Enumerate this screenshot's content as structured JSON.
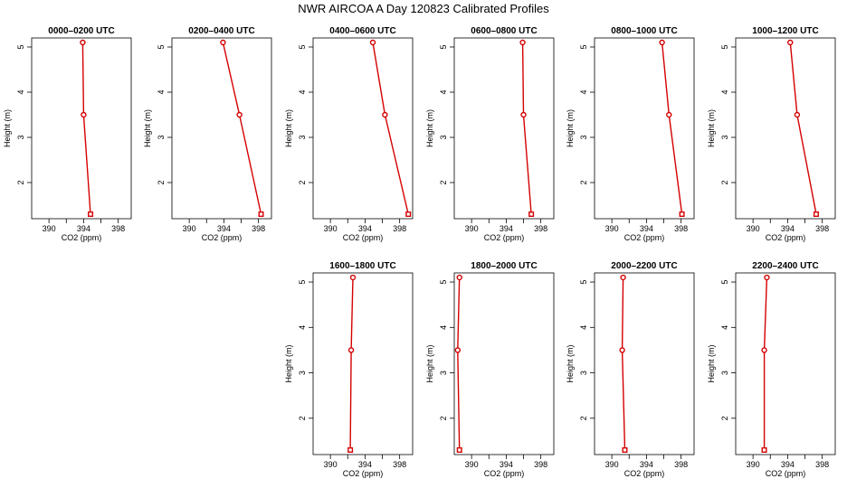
{
  "title": "NWR AIRCOA A  Day 120823  Calibrated Profiles",
  "colors": {
    "line": "#d40000",
    "frame": "#000000"
  },
  "chart_data": {
    "type": "line",
    "orientation": "profile",
    "xlabel": "CO2 (ppm)",
    "ylabel": "Height (m)",
    "xlim": [
      388,
      399.5
    ],
    "ylim": [
      1.2,
      5.2
    ],
    "xticks": [
      390,
      394,
      398
    ],
    "yticks": [
      2,
      3,
      4,
      5
    ],
    "grid": false,
    "panels": [
      {
        "title": "0000–0200 UTC",
        "row": 0,
        "col": 0,
        "heights": [
          5.1,
          3.5,
          1.3
        ],
        "co2": [
          393.9,
          394.0,
          394.8
        ]
      },
      {
        "title": "0200–0400 UTC",
        "row": 0,
        "col": 1,
        "heights": [
          5.1,
          3.5,
          1.3
        ],
        "co2": [
          393.9,
          395.8,
          398.3
        ]
      },
      {
        "title": "0400–0600 UTC",
        "row": 0,
        "col": 2,
        "heights": [
          5.1,
          3.5,
          1.3
        ],
        "co2": [
          394.9,
          396.3,
          399.0
        ]
      },
      {
        "title": "0600–0800 UTC",
        "row": 0,
        "col": 3,
        "heights": [
          5.1,
          3.5,
          1.3
        ],
        "co2": [
          395.9,
          396.0,
          396.9
        ]
      },
      {
        "title": "0800–1000 UTC",
        "row": 0,
        "col": 4,
        "heights": [
          5.1,
          3.5,
          1.3
        ],
        "co2": [
          395.8,
          396.6,
          398.1
        ]
      },
      {
        "title": "1000–1200 UTC",
        "row": 0,
        "col": 5,
        "heights": [
          5.1,
          3.5,
          1.3
        ],
        "co2": [
          394.3,
          395.1,
          397.3
        ]
      },
      {
        "title": "1600–1800 UTC",
        "row": 1,
        "col": 2,
        "heights": [
          5.1,
          3.5,
          1.3
        ],
        "co2": [
          392.6,
          392.4,
          392.3
        ]
      },
      {
        "title": "1800–2000 UTC",
        "row": 1,
        "col": 3,
        "heights": [
          5.1,
          3.5,
          1.3
        ],
        "co2": [
          388.6,
          388.4,
          388.6
        ]
      },
      {
        "title": "2000–2200 UTC",
        "row": 1,
        "col": 4,
        "heights": [
          5.1,
          3.5,
          1.3
        ],
        "co2": [
          391.3,
          391.2,
          391.5
        ]
      },
      {
        "title": "2200–2400 UTC",
        "row": 1,
        "col": 5,
        "heights": [
          5.1,
          3.5,
          1.3
        ],
        "co2": [
          391.6,
          391.3,
          391.3
        ]
      }
    ]
  }
}
